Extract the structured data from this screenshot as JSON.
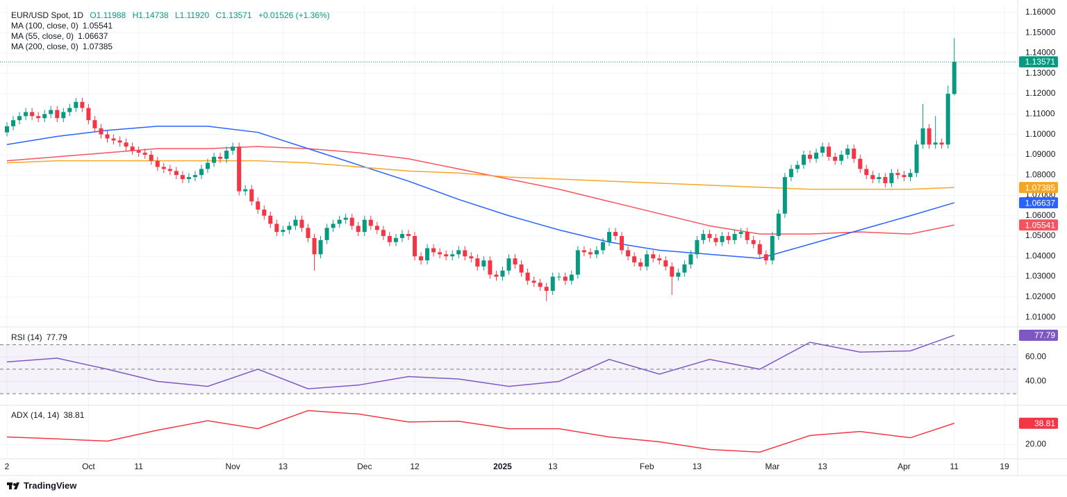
{
  "chart_data": [
    {
      "type": "candlestick",
      "title": "EUR/USD Spot, 1D",
      "ohlc_labels": [
        "O1.11988",
        "H1.14738",
        "L1.11920",
        "C1.13571"
      ],
      "change_label": "+0.01526 (+1.36%)",
      "last_label": "1.13571",
      "up_color": "#089981",
      "down_color": "#f23645",
      "open": [
        1.101,
        1.104,
        1.107,
        1.109,
        1.111,
        1.109,
        1.108,
        1.11,
        1.112,
        1.108,
        1.111,
        1.113,
        1.116,
        1.113,
        1.107,
        1.103,
        1.1,
        1.098,
        1.097,
        1.096,
        1.094,
        1.092,
        1.091,
        1.09,
        1.087,
        1.084,
        1.083,
        1.082,
        1.08,
        1.078,
        1.079,
        1.08,
        1.083,
        1.086,
        1.089,
        1.088,
        1.092,
        1.094,
        1.072,
        1.073,
        1.067,
        1.063,
        1.06,
        1.056,
        1.052,
        1.053,
        1.055,
        1.058,
        1.054,
        1.049,
        1.041,
        1.048,
        1.054,
        1.056,
        1.058,
        1.059,
        1.055,
        1.052,
        1.058,
        1.055,
        1.053,
        1.05,
        1.047,
        1.049,
        1.051,
        1.05,
        1.04,
        1.038,
        1.044,
        1.042,
        1.041,
        1.04,
        1.041,
        1.043,
        1.04,
        1.039,
        1.035,
        1.038,
        1.031,
        1.03,
        1.033,
        1.039,
        1.036,
        1.032,
        1.028,
        1.027,
        1.025,
        1.023,
        1.03,
        1.03,
        1.028,
        1.031,
        1.043,
        1.042,
        1.041,
        1.043,
        1.047,
        1.052,
        1.05,
        1.043,
        1.04,
        1.037,
        1.035,
        1.041,
        1.039,
        1.038,
        1.035,
        1.03,
        1.032,
        1.036,
        1.041,
        1.048,
        1.051,
        1.049,
        1.047,
        1.05,
        1.048,
        1.051,
        1.052,
        1.048,
        1.046,
        1.041,
        1.038,
        1.05,
        1.061,
        1.079,
        1.083,
        1.085,
        1.09,
        1.088,
        1.091,
        1.094,
        1.089,
        1.087,
        1.09,
        1.093,
        1.088,
        1.083,
        1.08,
        1.078,
        1.079,
        1.076,
        1.081,
        1.08,
        1.079,
        1.081,
        1.095,
        1.103,
        1.095,
        1.096,
        1.095,
        1.11988
      ],
      "high": [
        1.106,
        1.109,
        1.111,
        1.113,
        1.113,
        1.111,
        1.112,
        1.114,
        1.114,
        1.113,
        1.115,
        1.118,
        1.118,
        1.115,
        1.109,
        1.105,
        1.102,
        1.1,
        1.099,
        1.098,
        1.096,
        1.094,
        1.093,
        1.092,
        1.089,
        1.086,
        1.085,
        1.084,
        1.082,
        1.081,
        1.082,
        1.085,
        1.088,
        1.091,
        1.091,
        1.094,
        1.096,
        1.096,
        1.075,
        1.075,
        1.069,
        1.065,
        1.062,
        1.058,
        1.055,
        1.057,
        1.06,
        1.06,
        1.056,
        1.051,
        1.05,
        1.056,
        1.058,
        1.06,
        1.061,
        1.061,
        1.057,
        1.06,
        1.06,
        1.057,
        1.055,
        1.052,
        1.051,
        1.053,
        1.053,
        1.052,
        1.042,
        1.046,
        1.046,
        1.044,
        1.043,
        1.043,
        1.045,
        1.045,
        1.042,
        1.041,
        1.04,
        1.04,
        1.033,
        1.035,
        1.041,
        1.041,
        1.038,
        1.034,
        1.03,
        1.029,
        1.027,
        1.032,
        1.032,
        1.032,
        1.033,
        1.045,
        1.045,
        1.044,
        1.045,
        1.049,
        1.054,
        1.054,
        1.052,
        1.045,
        1.042,
        1.039,
        1.043,
        1.043,
        1.041,
        1.04,
        1.037,
        1.034,
        1.038,
        1.043,
        1.05,
        1.053,
        1.053,
        1.051,
        1.052,
        1.052,
        1.053,
        1.054,
        1.054,
        1.05,
        1.048,
        1.043,
        1.052,
        1.063,
        1.081,
        1.085,
        1.087,
        1.092,
        1.092,
        1.093,
        1.096,
        1.096,
        1.091,
        1.092,
        1.095,
        1.095,
        1.09,
        1.085,
        1.082,
        1.081,
        1.081,
        1.083,
        1.083,
        1.082,
        1.083,
        1.097,
        1.115,
        1.105,
        1.109,
        1.098,
        1.124,
        1.14738
      ],
      "low": [
        1.099,
        1.102,
        1.105,
        1.107,
        1.107,
        1.106,
        1.106,
        1.108,
        1.106,
        1.106,
        1.109,
        1.111,
        1.111,
        1.105,
        1.101,
        1.098,
        1.096,
        1.095,
        1.094,
        1.092,
        1.09,
        1.089,
        1.088,
        1.085,
        1.082,
        1.081,
        1.08,
        1.078,
        1.076,
        1.076,
        1.077,
        1.078,
        1.081,
        1.084,
        1.086,
        1.086,
        1.09,
        1.07,
        1.07,
        1.065,
        1.061,
        1.058,
        1.054,
        1.05,
        1.05,
        1.051,
        1.053,
        1.052,
        1.047,
        1.033,
        1.039,
        1.046,
        1.052,
        1.054,
        1.056,
        1.053,
        1.05,
        1.05,
        1.053,
        1.051,
        1.048,
        1.045,
        1.045,
        1.047,
        1.048,
        1.038,
        1.036,
        1.036,
        1.04,
        1.039,
        1.038,
        1.038,
        1.039,
        1.038,
        1.037,
        1.033,
        1.033,
        1.029,
        1.028,
        1.028,
        1.031,
        1.034,
        1.03,
        1.026,
        1.025,
        1.023,
        1.018,
        1.021,
        1.028,
        1.026,
        1.026,
        1.029,
        1.04,
        1.039,
        1.039,
        1.041,
        1.045,
        1.048,
        1.041,
        1.038,
        1.035,
        1.033,
        1.033,
        1.037,
        1.036,
        1.033,
        1.021,
        1.028,
        1.03,
        1.034,
        1.039,
        1.046,
        1.047,
        1.045,
        1.045,
        1.046,
        1.046,
        1.049,
        1.046,
        1.044,
        1.039,
        1.036,
        1.036,
        1.048,
        1.059,
        1.077,
        1.081,
        1.083,
        1.086,
        1.086,
        1.089,
        1.087,
        1.085,
        1.085,
        1.088,
        1.086,
        1.081,
        1.078,
        1.076,
        1.076,
        1.074,
        1.074,
        1.078,
        1.077,
        1.077,
        1.079,
        1.093,
        1.093,
        1.093,
        1.093,
        1.093,
        1.1192
      ],
      "close": [
        1.104,
        1.107,
        1.109,
        1.111,
        1.109,
        1.108,
        1.11,
        1.112,
        1.108,
        1.111,
        1.113,
        1.116,
        1.113,
        1.107,
        1.103,
        1.1,
        1.098,
        1.097,
        1.096,
        1.094,
        1.092,
        1.091,
        1.09,
        1.087,
        1.084,
        1.083,
        1.082,
        1.08,
        1.078,
        1.079,
        1.08,
        1.083,
        1.086,
        1.089,
        1.088,
        1.092,
        1.094,
        1.072,
        1.073,
        1.067,
        1.063,
        1.06,
        1.056,
        1.052,
        1.053,
        1.055,
        1.058,
        1.054,
        1.049,
        1.041,
        1.048,
        1.054,
        1.056,
        1.058,
        1.059,
        1.055,
        1.052,
        1.058,
        1.055,
        1.053,
        1.05,
        1.047,
        1.049,
        1.051,
        1.05,
        1.04,
        1.038,
        1.044,
        1.042,
        1.041,
        1.04,
        1.041,
        1.043,
        1.04,
        1.039,
        1.035,
        1.038,
        1.031,
        1.03,
        1.033,
        1.039,
        1.036,
        1.032,
        1.028,
        1.027,
        1.025,
        1.023,
        1.03,
        1.03,
        1.028,
        1.031,
        1.043,
        1.042,
        1.041,
        1.043,
        1.047,
        1.052,
        1.05,
        1.043,
        1.04,
        1.037,
        1.035,
        1.041,
        1.039,
        1.038,
        1.035,
        1.03,
        1.032,
        1.036,
        1.041,
        1.048,
        1.051,
        1.049,
        1.047,
        1.05,
        1.048,
        1.051,
        1.052,
        1.048,
        1.046,
        1.041,
        1.038,
        1.05,
        1.061,
        1.079,
        1.083,
        1.085,
        1.09,
        1.088,
        1.091,
        1.094,
        1.089,
        1.087,
        1.09,
        1.093,
        1.088,
        1.083,
        1.08,
        1.078,
        1.079,
        1.076,
        1.081,
        1.08,
        1.079,
        1.081,
        1.095,
        1.103,
        1.095,
        1.096,
        1.095,
        1.12,
        1.13571
      ],
      "series": [
        {
          "name": "MA (100, close, 0)",
          "value_label": "1.05541",
          "color": "#f7525f",
          "x": [
            0,
            8,
            16,
            24,
            32,
            40,
            48,
            56,
            64,
            72,
            80,
            88,
            96,
            104,
            112,
            120,
            128,
            136,
            144,
            151
          ],
          "values": [
            1.087,
            1.089,
            1.091,
            1.093,
            1.093,
            1.094,
            1.093,
            1.091,
            1.088,
            1.083,
            1.078,
            1.073,
            1.067,
            1.061,
            1.055,
            1.051,
            1.051,
            1.052,
            1.051,
            1.05541
          ]
        },
        {
          "name": "MA (55, close, 0)",
          "value_label": "1.06637",
          "color": "#2962ff",
          "x": [
            0,
            8,
            16,
            24,
            32,
            40,
            48,
            56,
            64,
            72,
            80,
            88,
            96,
            104,
            112,
            120,
            128,
            136,
            144,
            151
          ],
          "values": [
            1.095,
            1.099,
            1.102,
            1.104,
            1.104,
            1.101,
            1.093,
            1.085,
            1.077,
            1.068,
            1.06,
            1.053,
            1.047,
            1.043,
            1.041,
            1.039,
            1.046,
            1.053,
            1.06,
            1.06637
          ]
        },
        {
          "name": "MA (200, close, 0)",
          "value_label": "1.07385",
          "color": "#f5a623",
          "x": [
            0,
            8,
            16,
            24,
            32,
            40,
            48,
            56,
            64,
            72,
            80,
            88,
            96,
            104,
            112,
            120,
            128,
            136,
            144,
            151
          ],
          "values": [
            1.086,
            1.087,
            1.087,
            1.087,
            1.087,
            1.087,
            1.086,
            1.084,
            1.082,
            1.081,
            1.079,
            1.078,
            1.077,
            1.076,
            1.075,
            1.074,
            1.073,
            1.073,
            1.073,
            1.07385
          ]
        }
      ],
      "xlim": [
        0,
        160
      ],
      "xticks": [
        {
          "value": 0,
          "label": "2"
        },
        {
          "value": 13,
          "label": "Oct"
        },
        {
          "value": 21,
          "label": "11"
        },
        {
          "value": 36,
          "label": "Nov"
        },
        {
          "value": 44,
          "label": "13"
        },
        {
          "value": 57,
          "label": "Dec"
        },
        {
          "value": 65,
          "label": "12"
        },
        {
          "value": 79,
          "label": "2025"
        },
        {
          "value": 87,
          "label": "13"
        },
        {
          "value": 102,
          "label": "Feb"
        },
        {
          "value": 110,
          "label": "13"
        },
        {
          "value": 122,
          "label": "Mar"
        },
        {
          "value": 130,
          "label": "13"
        },
        {
          "value": 143,
          "label": "Apr"
        },
        {
          "value": 151,
          "label": "11"
        },
        {
          "value": 159,
          "label": "19"
        }
      ],
      "ylim": [
        1.0056,
        1.1634
      ],
      "yticks": [
        {
          "value": 1.01,
          "label": "1.01000"
        },
        {
          "value": 1.02,
          "label": "1.02000"
        },
        {
          "value": 1.03,
          "label": "1.03000"
        },
        {
          "value": 1.04,
          "label": "1.04000"
        },
        {
          "value": 1.05,
          "label": "1.05000"
        },
        {
          "value": 1.06,
          "label": "1.06000"
        },
        {
          "value": 1.07,
          "label": "1.07000"
        },
        {
          "value": 1.08,
          "label": "1.08000"
        },
        {
          "value": 1.09,
          "label": "1.09000"
        },
        {
          "value": 1.1,
          "label": "1.10000"
        },
        {
          "value": 1.11,
          "label": "1.11000"
        },
        {
          "value": 1.12,
          "label": "1.12000"
        },
        {
          "value": 1.13,
          "label": "1.13000"
        },
        {
          "value": 1.14,
          "label": "1.14000"
        },
        {
          "value": 1.15,
          "label": "1.15000"
        },
        {
          "value": 1.16,
          "label": "1.16000"
        }
      ],
      "grid": true
    },
    {
      "type": "line",
      "series": [
        {
          "name": "RSI (14)",
          "value_label": "77.79",
          "color": "#7e57c2",
          "x": [
            0,
            8,
            16,
            24,
            32,
            40,
            48,
            56,
            64,
            72,
            80,
            88,
            96,
            104,
            112,
            120,
            128,
            136,
            144,
            151
          ],
          "values": [
            56,
            59,
            50,
            40,
            36,
            50,
            34,
            37,
            44,
            42,
            36,
            40,
            58,
            46,
            58,
            50,
            72,
            64,
            65,
            77.79
          ]
        }
      ],
      "ylim": [
        21,
        84
      ],
      "levels": [
        30,
        50,
        70
      ],
      "band_color": "#7e57c2",
      "yticks": [
        {
          "value": 40,
          "label": "40.00"
        },
        {
          "value": 60,
          "label": "60.00"
        }
      ],
      "grid": true
    },
    {
      "type": "line",
      "series": [
        {
          "name": "ADX (14, 14)",
          "value_label": "38.81",
          "color": "#f23645",
          "x": [
            0,
            8,
            16,
            24,
            32,
            40,
            48,
            56,
            64,
            72,
            80,
            88,
            96,
            104,
            112,
            120,
            128,
            136,
            144,
            151
          ],
          "values": [
            26.7,
            25,
            23,
            32.7,
            41,
            34,
            50,
            47,
            40,
            40.6,
            34,
            34,
            26.7,
            22.4,
            15.7,
            13.3,
            28,
            31.5,
            26,
            38.81
          ]
        }
      ],
      "ylim": [
        8,
        54
      ],
      "yticks": [
        {
          "value": 20,
          "label": "20.00"
        }
      ],
      "grid": true
    }
  ],
  "footer": {
    "brand": "TradingView"
  }
}
